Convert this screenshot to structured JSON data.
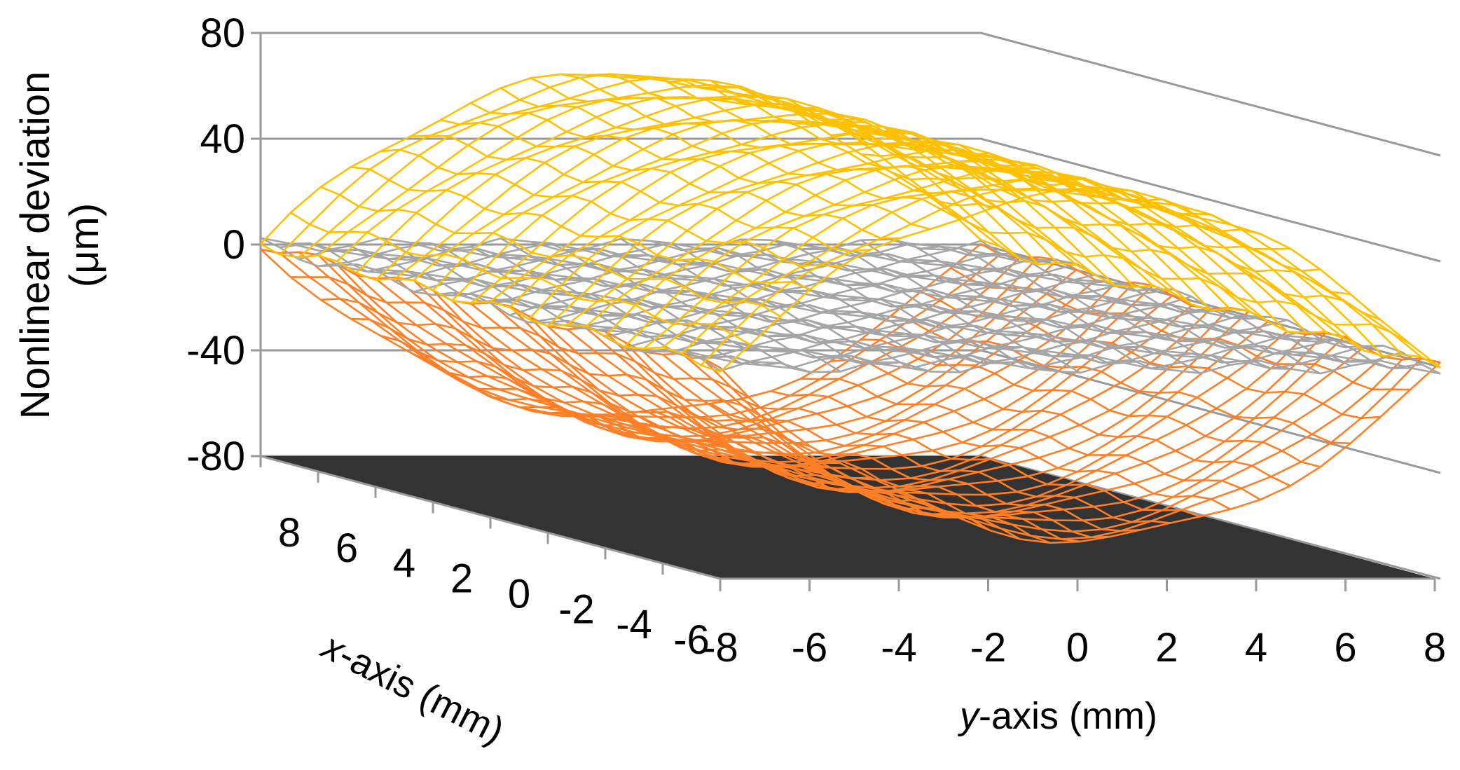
{
  "chart_data": {
    "type": "surface",
    "zlabel_line1": "Nonlinear deviation",
    "zlabel_line2": "(μm)",
    "xlabel_italic": "x",
    "xlabel_rest": "-axis (mm)",
    "ylabel_italic": "y",
    "ylabel_rest": "-axis (mm)",
    "z_ticks": [
      "80",
      "40",
      "0",
      "-40",
      "-80"
    ],
    "z_values": [
      80,
      40,
      0,
      -40,
      -80
    ],
    "zlim": [
      -80,
      80
    ],
    "x_ticks": [
      "8",
      "6",
      "4",
      "2",
      "0",
      "-2",
      "-4",
      "-6"
    ],
    "y_ticks": [
      "-8",
      "-6",
      "-4",
      "-2",
      "0",
      "2",
      "4",
      "6",
      "8"
    ],
    "xlim": [
      -8,
      8
    ],
    "ylim": [
      -8,
      8
    ],
    "grid": true,
    "floor_color": "#333333",
    "grid_color": "#999999",
    "series": [
      {
        "color": "#FFC000",
        "shape": "dome (inverted parabola) along y",
        "peak": 65,
        "edge_at_y_pm8": 0
      },
      {
        "color": "#A5A5A5",
        "shape": "nearly flat plane",
        "level": 0
      },
      {
        "color": "#FF7F27",
        "shape": "bowl (parabola) along y",
        "trough": -65,
        "edge_at_y_pm8": 0
      }
    ]
  }
}
